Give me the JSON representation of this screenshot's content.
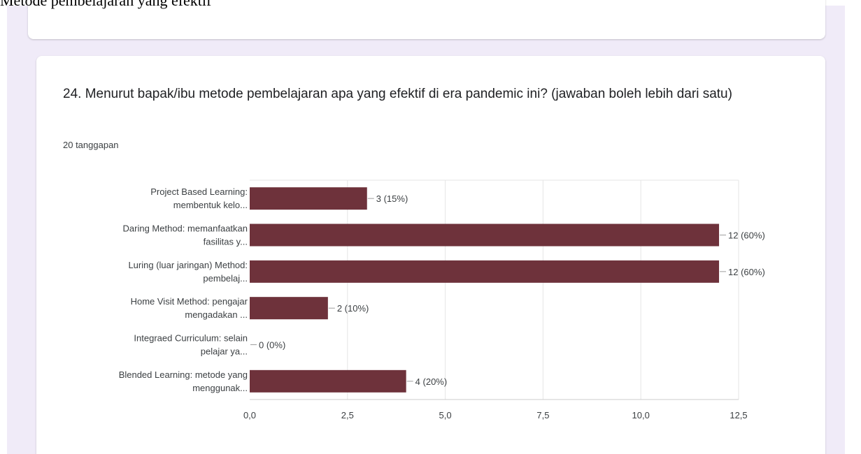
{
  "document": {
    "heading": "Metode pembelajaran yang efektif"
  },
  "question": {
    "title": "24. Menurut bapak/ibu metode pembelajaran apa yang efektif di era pandemic ini? (jawaban boleh lebih dari satu)",
    "responses": "20 tanggapan"
  },
  "colors": {
    "bar": "#6e323b",
    "page_background": "#f0ebf8",
    "card": "#ffffff",
    "grid": "#e5e5e5"
  },
  "chart_data": {
    "type": "bar",
    "orientation": "horizontal",
    "categories": [
      [
        "Project Based Learning:",
        "membentuk kelo..."
      ],
      [
        "Daring Method: memanfaatkan",
        "fasilitas y..."
      ],
      [
        "Luring (luar jaringan) Method:",
        "pembelaj..."
      ],
      [
        "Home Visit Method: pengajar",
        "mengadakan ..."
      ],
      [
        "Integraed Curriculum: selain",
        "pelajar ya..."
      ],
      [
        "Blended Learning: metode yang",
        "menggunak..."
      ]
    ],
    "values": [
      3,
      12,
      12,
      2,
      0,
      4
    ],
    "data_labels": [
      "3 (15%)",
      "12 (60%)",
      "12 (60%)",
      "2 (10%)",
      "0 (0%)",
      "4 (20%)"
    ],
    "xlim": [
      0,
      12.5
    ],
    "xticks": [
      0,
      2.5,
      5,
      7.5,
      10,
      12.5
    ],
    "xtick_labels": [
      "0,0",
      "2,5",
      "5,0",
      "7,5",
      "10,0",
      "12,5"
    ],
    "grid": true,
    "title": "",
    "xlabel": "",
    "ylabel": ""
  }
}
